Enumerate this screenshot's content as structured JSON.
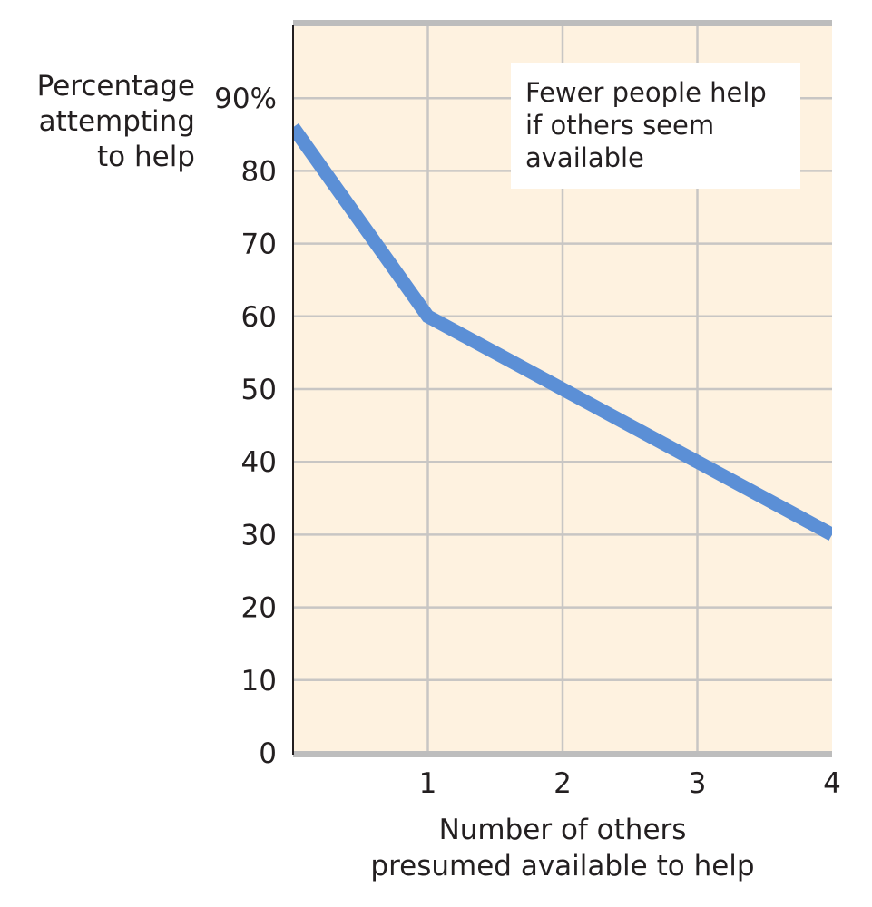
{
  "chart_data": {
    "type": "line",
    "title": "",
    "xlabel": "Number of others\npresumed available to help",
    "ylabel": "Percentage\nattempting\nto help",
    "x": [
      0,
      1,
      2,
      3,
      4
    ],
    "series": [
      {
        "name": "Percentage attempting to help",
        "values": [
          86,
          60,
          50,
          40,
          30
        ]
      }
    ],
    "xlim": [
      0,
      4
    ],
    "ylim": [
      0,
      100
    ],
    "xticks": [
      1,
      2,
      3,
      4
    ],
    "xtick_labels": [
      "1",
      "2",
      "3",
      "4"
    ],
    "yticks": [
      0,
      10,
      20,
      30,
      40,
      50,
      60,
      70,
      80,
      90
    ],
    "ytick_labels": [
      "0",
      "10",
      "20",
      "30",
      "40",
      "50",
      "60",
      "70",
      "80",
      "90%"
    ],
    "grid": true,
    "annotation": "Fewer people help\nif others seem\navailable",
    "colors": {
      "line": "#5b8fd6",
      "background": "#fef2e0",
      "grid": "#c8c6c4",
      "frame": "#bdbdbd"
    }
  }
}
